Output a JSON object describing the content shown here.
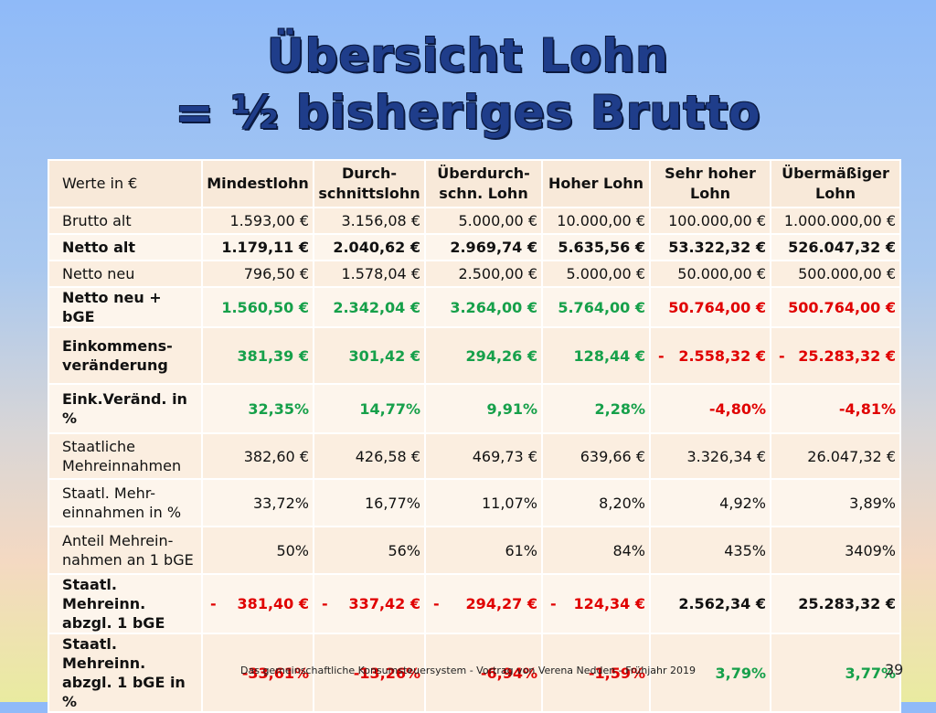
{
  "title": {
    "line1": "Übersicht Lohn",
    "line2": "= ½ bisheriges Brutto"
  },
  "table": {
    "header_first": "Werte in €",
    "columns": [
      "Mindestlohn",
      "Durch-\nschnittslohn",
      "Überdurch-\nschn. Lohn",
      "Hoher Lohn",
      "Sehr hoher\nLohn",
      "Übermäßiger\nLohn"
    ],
    "rows": [
      {
        "label": "Brutto alt",
        "bold": false,
        "height": 29,
        "cells": [
          {
            "v": "1.593,00 €"
          },
          {
            "v": "3.156,08 €"
          },
          {
            "v": "5.000,00 €"
          },
          {
            "v": "10.000,00 €"
          },
          {
            "v": "100.000,00 €"
          },
          {
            "v": "1.000.000,00 €"
          }
        ]
      },
      {
        "label": "Netto alt",
        "bold": true,
        "height": 29,
        "cells": [
          {
            "v": "1.179,11 €"
          },
          {
            "v": "2.040,62 €"
          },
          {
            "v": "2.969,74 €"
          },
          {
            "v": "5.635,56 €"
          },
          {
            "v": "53.322,32 €"
          },
          {
            "v": "526.047,32 €"
          }
        ]
      },
      {
        "label": "Netto neu",
        "bold": false,
        "height": 29,
        "cells": [
          {
            "v": "796,50 €"
          },
          {
            "v": "1.578,04 €"
          },
          {
            "v": "2.500,00 €"
          },
          {
            "v": "5.000,00 €"
          },
          {
            "v": "50.000,00 €"
          },
          {
            "v": "500.000,00 €"
          }
        ]
      },
      {
        "label": "Netto neu + bGE",
        "bold": true,
        "height": 29,
        "cells": [
          {
            "v": "1.560,50 €",
            "c": "green"
          },
          {
            "v": "2.342,04 €",
            "c": "green"
          },
          {
            "v": "3.264,00 €",
            "c": "green"
          },
          {
            "v": "5.764,00 €",
            "c": "green"
          },
          {
            "v": "50.764,00 €",
            "c": "red"
          },
          {
            "v": "500.764,00 €",
            "c": "red"
          }
        ]
      },
      {
        "label": "Einkommens-\nveränderung",
        "bold": true,
        "height": 62,
        "cells": [
          {
            "v": "381,39 €",
            "c": "green"
          },
          {
            "v": "301,42 €",
            "c": "green"
          },
          {
            "v": "294,26 €",
            "c": "green"
          },
          {
            "v": "128,44 €",
            "c": "green"
          },
          {
            "v": "2.558,32 €",
            "c": "red",
            "minus": "-"
          },
          {
            "v": "25.283,32 €",
            "c": "red",
            "minus": "-"
          }
        ]
      },
      {
        "label": "Eink.Veränd. in\n%",
        "bold": true,
        "height": 54,
        "cells": [
          {
            "v": "32,35%",
            "c": "green"
          },
          {
            "v": "14,77%",
            "c": "green"
          },
          {
            "v": "9,91%",
            "c": "green"
          },
          {
            "v": "2,28%",
            "c": "green"
          },
          {
            "v": "-4,80%",
            "c": "red"
          },
          {
            "v": "-4,81%",
            "c": "red"
          }
        ]
      },
      {
        "label": "Staatliche\nMehreinnahmen",
        "bold": false,
        "height": 50,
        "cells": [
          {
            "v": "382,60 €"
          },
          {
            "v": "426,58 €"
          },
          {
            "v": "469,73 €"
          },
          {
            "v": "639,66 €"
          },
          {
            "v": "3.326,34 €"
          },
          {
            "v": "26.047,32 €"
          }
        ]
      },
      {
        "label": "Staatl. Mehr-\neinnahmen in %",
        "bold": false,
        "height": 52,
        "cells": [
          {
            "v": "33,72%"
          },
          {
            "v": "16,77%"
          },
          {
            "v": "11,07%"
          },
          {
            "v": "8,20%"
          },
          {
            "v": "4,92%"
          },
          {
            "v": "3,89%"
          }
        ]
      },
      {
        "label": "Anteil Mehrein-\nnahmen an 1 bGE",
        "bold": false,
        "height": 52,
        "cells": [
          {
            "v": "50%"
          },
          {
            "v": "56%"
          },
          {
            "v": "61%"
          },
          {
            "v": "84%"
          },
          {
            "v": "435%"
          },
          {
            "v": "3409%"
          }
        ]
      },
      {
        "label": "Staatl. Mehreinn.\nabzgl. 1 bGE",
        "bold": true,
        "height": 52,
        "cells": [
          {
            "v": "381,40 €",
            "c": "red",
            "minus": "-"
          },
          {
            "v": "337,42 €",
            "c": "red",
            "minus": "-"
          },
          {
            "v": "294,27 €",
            "c": "red",
            "minus": "-"
          },
          {
            "v": "124,34 €",
            "c": "red",
            "minus": "-"
          },
          {
            "v": "2.562,34 €",
            "c": "plain"
          },
          {
            "v": "25.283,32 €",
            "c": "plain"
          }
        ]
      },
      {
        "label": "Staatl. Mehreinn.\nabzgl. 1 bGE in %",
        "bold": true,
        "height": 52,
        "cells": [
          {
            "v": "-33,61%",
            "c": "red"
          },
          {
            "v": "-13,26%",
            "c": "red"
          },
          {
            "v": "-6,94%",
            "c": "red"
          },
          {
            "v": "-1,59%",
            "c": "red"
          },
          {
            "v": "3,79%",
            "c": "green"
          },
          {
            "v": "3,77%",
            "c": "green"
          }
        ]
      }
    ]
  },
  "footer": "Das gemeinschaftliche Konsumsteuersystem - Vortrag von Verena Nedden  -  Frühjahr 2019",
  "page_number": "39",
  "colors": {
    "green": "#16a04a",
    "red": "#e00000",
    "title": "#1f3d8a"
  }
}
